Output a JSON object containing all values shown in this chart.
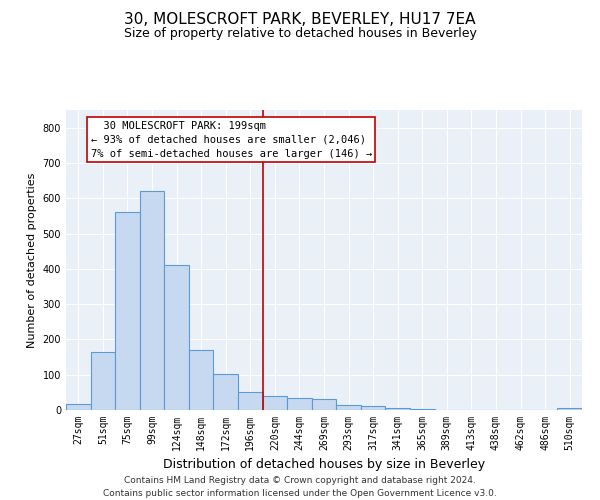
{
  "title1": "30, MOLESCROFT PARK, BEVERLEY, HU17 7EA",
  "title2": "Size of property relative to detached houses in Beverley",
  "xlabel": "Distribution of detached houses by size in Beverley",
  "ylabel": "Number of detached properties",
  "categories": [
    "27sqm",
    "51sqm",
    "75sqm",
    "99sqm",
    "124sqm",
    "148sqm",
    "172sqm",
    "196sqm",
    "220sqm",
    "244sqm",
    "269sqm",
    "293sqm",
    "317sqm",
    "341sqm",
    "365sqm",
    "389sqm",
    "413sqm",
    "438sqm",
    "462sqm",
    "486sqm",
    "510sqm"
  ],
  "values": [
    16,
    165,
    560,
    620,
    410,
    170,
    103,
    50,
    40,
    35,
    30,
    13,
    10,
    5,
    3,
    1,
    1,
    0,
    0,
    0,
    5
  ],
  "bar_color": "#c6d9f0",
  "bar_edge_color": "#5b9bd5",
  "bar_linewidth": 0.8,
  "vline_x": 7.5,
  "vline_color": "#c00000",
  "annotation_text": "  30 MOLESCROFT PARK: 199sqm\n← 93% of detached houses are smaller (2,046)\n7% of semi-detached houses are larger (146) →",
  "annotation_box_color": "#c00000",
  "annotation_text_size": 7.5,
  "title1_fontsize": 11,
  "title2_fontsize": 9,
  "xlabel_fontsize": 9,
  "ylabel_fontsize": 8,
  "tick_fontsize": 7,
  "ylim": [
    0,
    850
  ],
  "yticks": [
    0,
    100,
    200,
    300,
    400,
    500,
    600,
    700,
    800
  ],
  "background_color": "#eaf0f8",
  "grid_color": "#ffffff",
  "footer_line1": "Contains HM Land Registry data © Crown copyright and database right 2024.",
  "footer_line2": "Contains public sector information licensed under the Open Government Licence v3.0.",
  "footer_fontsize": 6.5
}
